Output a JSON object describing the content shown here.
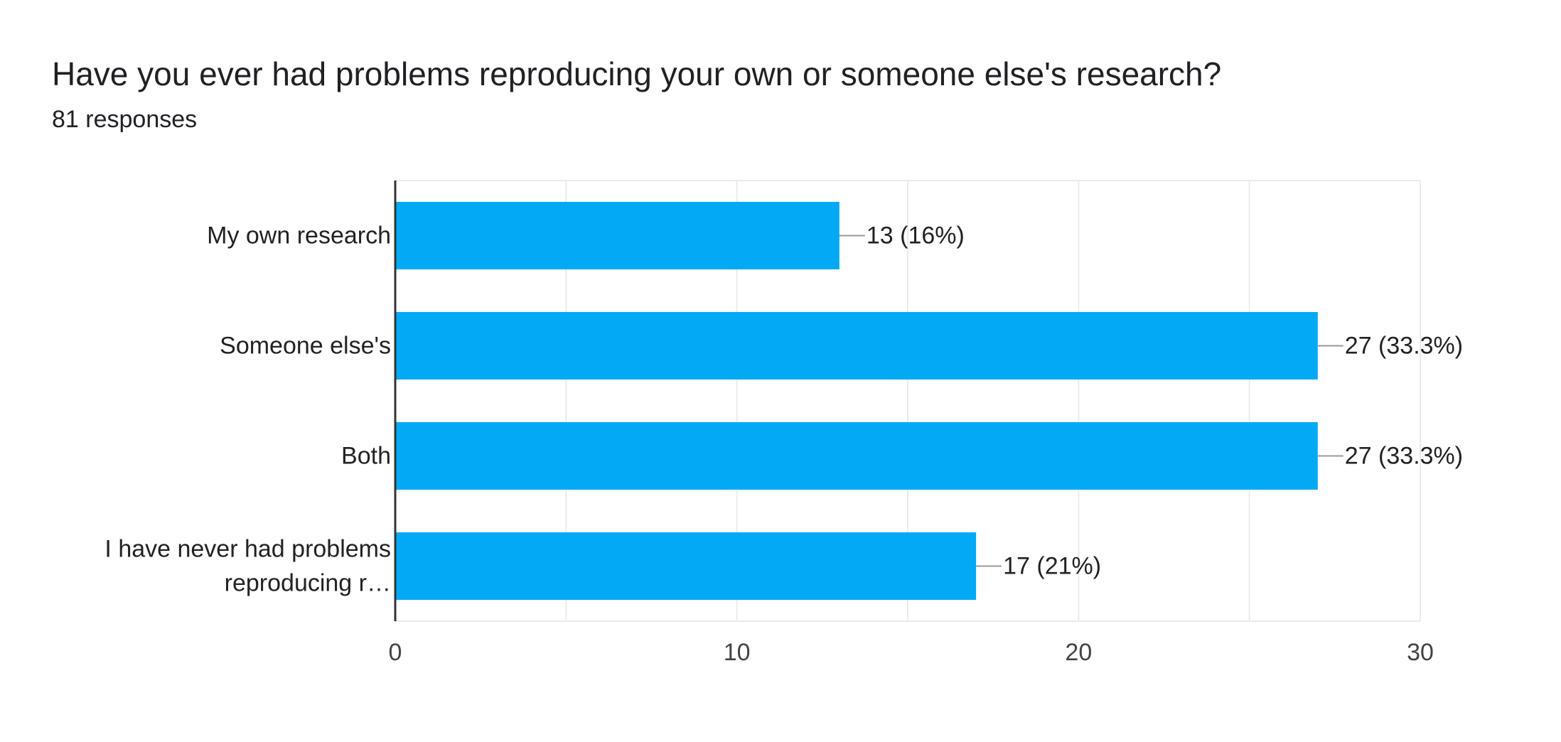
{
  "header": {
    "title": "Have you ever had problems reproducing your own or someone else's research?",
    "subtitle": "81 responses"
  },
  "chart_data": {
    "type": "bar",
    "orientation": "horizontal",
    "categories": [
      [
        "My own research"
      ],
      [
        "Someone else's"
      ],
      [
        "Both"
      ],
      [
        "I have never had problems",
        "reproducing r…"
      ]
    ],
    "values": [
      13,
      27,
      27,
      17
    ],
    "data_labels": [
      "13 (16%)",
      "27 (33.3%)",
      "27 (33.3%)",
      "17 (21%)"
    ],
    "xlim": [
      0,
      30
    ],
    "xticks": [
      0,
      10,
      20,
      30
    ],
    "grid": true,
    "bar_color": "#03a9f4",
    "axis_color": "#333333",
    "grid_color": "#ebebeb",
    "leader_color": "#999999"
  }
}
